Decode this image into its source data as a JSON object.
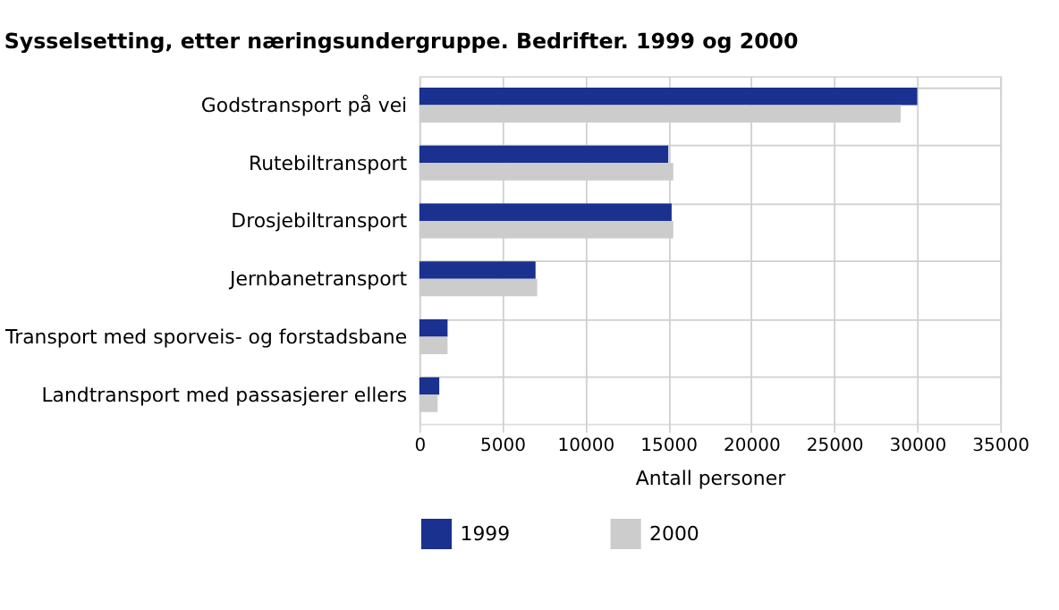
{
  "chart_data": {
    "type": "bar",
    "orientation": "horizontal",
    "title": "Sysselsetting, etter næringsundergruppe. Bedrifter. 1999 og 2000",
    "categories": [
      "Godstransport på vei",
      "Rutebiltransport",
      "Drosjebiltransport",
      "Jernbanetransport",
      "Transport med sporveis- og forstadsbane",
      "Landtransport med passasjerer ellers"
    ],
    "series": [
      {
        "name": "1999",
        "color": "#1a318f",
        "values": [
          30000,
          15000,
          15200,
          7000,
          1700,
          1200
        ]
      },
      {
        "name": "2000",
        "color": "#cccccc",
        "values": [
          29000,
          15300,
          15300,
          7100,
          1700,
          1100
        ]
      }
    ],
    "xlabel": "Antall personer",
    "xlim": [
      0,
      35000
    ],
    "xticks": [
      0,
      5000,
      10000,
      15000,
      20000,
      25000,
      30000,
      35000
    ],
    "grid": true,
    "legend": "bottom"
  }
}
